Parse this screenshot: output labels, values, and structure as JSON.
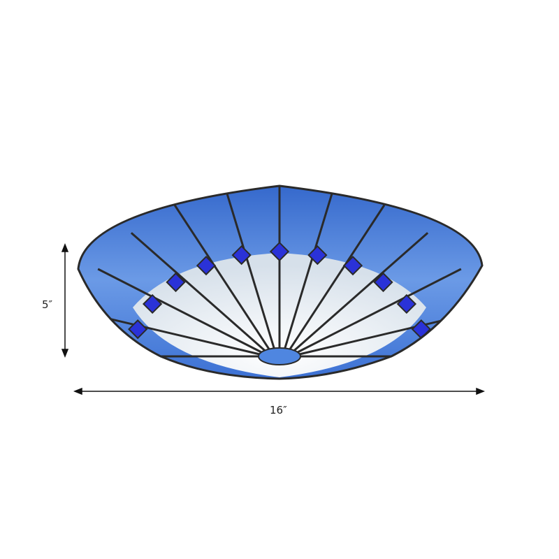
{
  "product": {
    "height_label": "5″",
    "width_label": "16″"
  },
  "colors": {
    "glass_blue": "#3f74d6",
    "accent_blue": "#2a32d8",
    "white_glass": "#e8eef4",
    "lead_lines": "#2a2a2a"
  }
}
